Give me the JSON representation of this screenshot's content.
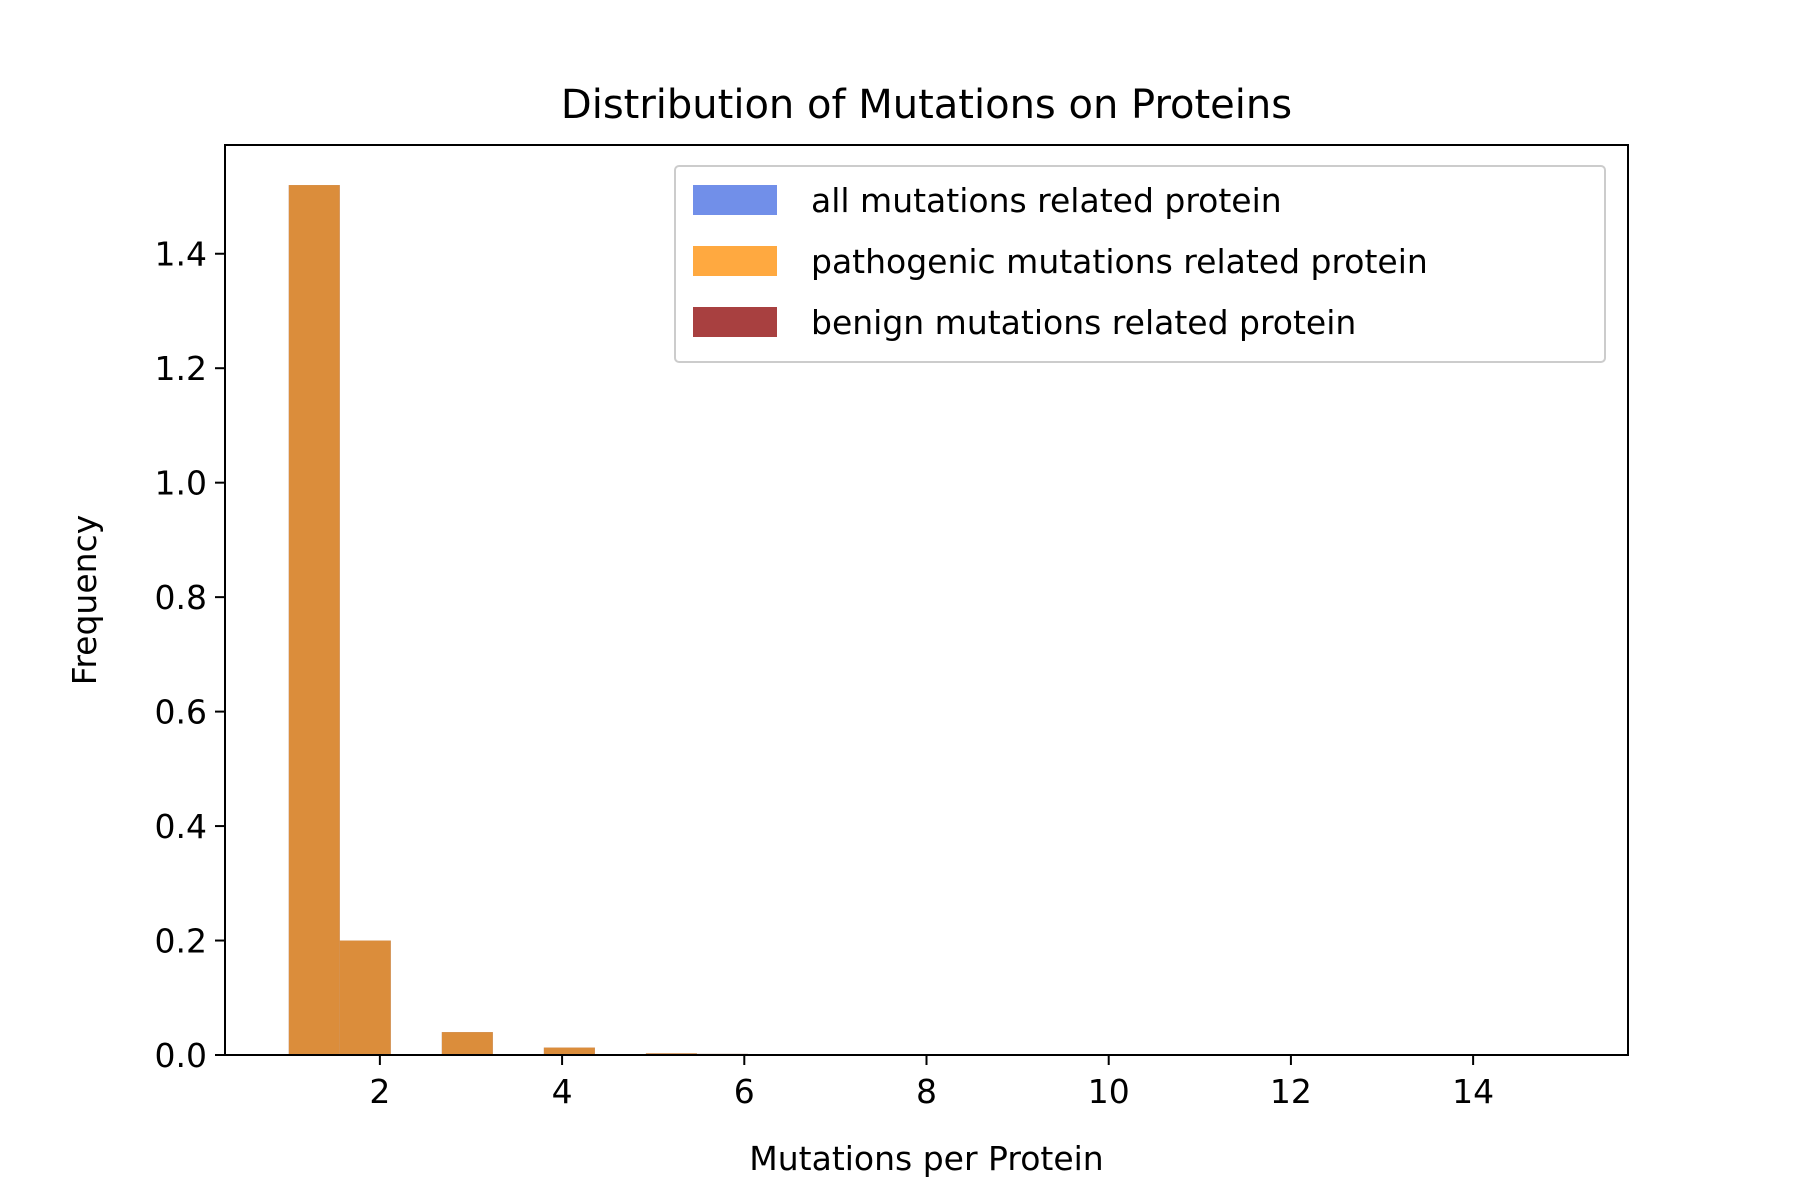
{
  "chart_data": {
    "type": "bar",
    "title": "Distribution of Mutations on Proteins",
    "xlabel": "Mutations per Protein",
    "ylabel": "Frequency",
    "xlim": [
      0.3,
      15.7
    ],
    "ylim": [
      0,
      1.59
    ],
    "x_ticks": [
      "2",
      "4",
      "6",
      "8",
      "10",
      "12",
      "14"
    ],
    "y_ticks": [
      "0.0",
      "0.2",
      "0.4",
      "0.6",
      "0.8",
      "1.0",
      "1.2",
      "1.4"
    ],
    "bin_width": 0.56,
    "series": [
      {
        "name": "all mutations related protein",
        "color": "#4169e1",
        "opacity": 0.75,
        "bins": [
          {
            "x": 1.0,
            "y": 1.52
          },
          {
            "x": 1.56,
            "y": 0.2
          },
          {
            "x": 2.68,
            "y": 0.04
          },
          {
            "x": 3.8,
            "y": 0.013
          },
          {
            "x": 4.92,
            "y": 0.003
          },
          {
            "x": 5.48,
            "y": 0.002
          }
        ]
      },
      {
        "name": "pathogenic mutations related protein",
        "color": "#ff8c00",
        "opacity": 0.75,
        "bins": [
          {
            "x": 1.0,
            "y": 1.52
          },
          {
            "x": 1.56,
            "y": 0.2
          },
          {
            "x": 2.68,
            "y": 0.04
          },
          {
            "x": 3.8,
            "y": 0.013
          },
          {
            "x": 4.92,
            "y": 0.003
          },
          {
            "x": 5.48,
            "y": 0.002
          }
        ]
      },
      {
        "name": "benign mutations related protein",
        "color": "#8b0000",
        "opacity": 0.75,
        "bins": []
      }
    ],
    "legend": {
      "position": "top-right"
    }
  }
}
